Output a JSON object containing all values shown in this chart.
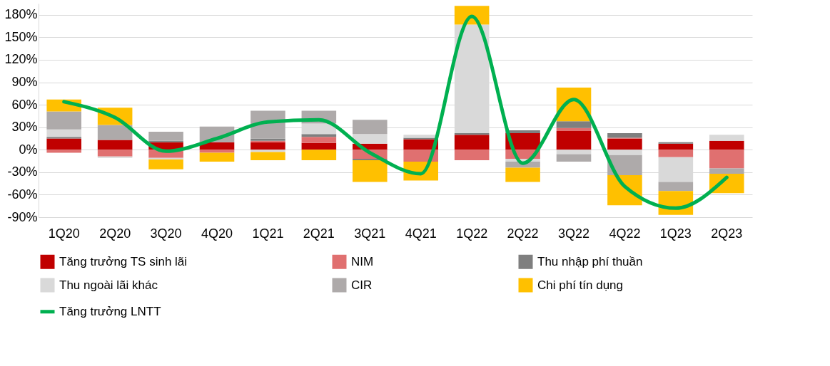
{
  "chart_data": {
    "type": "bar",
    "stacked": true,
    "categories": [
      "1Q20",
      "2Q20",
      "3Q20",
      "4Q20",
      "1Q21",
      "2Q21",
      "3Q21",
      "4Q21",
      "1Q22",
      "2Q22",
      "3Q22",
      "4Q22",
      "1Q23",
      "2Q23"
    ],
    "series": [
      {
        "name": "Tăng trưởng TS sinh lãi",
        "color": "#c00000",
        "values": [
          15,
          13,
          10,
          10,
          10,
          9,
          8,
          14,
          20,
          22,
          25,
          15,
          8,
          12
        ]
      },
      {
        "name": "NIM",
        "color": "#e07070",
        "values": [
          -4,
          -9,
          -11,
          -4,
          2,
          8,
          -12,
          -16,
          -14,
          -12,
          4,
          1,
          -10,
          -25
        ]
      },
      {
        "name": "Thu nhập phí thuần",
        "color": "#7f7f7f",
        "values": [
          2,
          null,
          2,
          null,
          3,
          4,
          -2,
          2,
          2,
          4,
          9,
          6,
          2,
          null
        ]
      },
      {
        "name": "Thu ngoài lãi khác",
        "color": "#d9d9d9",
        "values": [
          10,
          -2,
          -2,
          null,
          -3,
          14,
          13,
          4,
          145,
          -4,
          -6,
          -7,
          -33,
          8
        ]
      },
      {
        "name": "CIR",
        "color": "#aeaaaa",
        "values": [
          24,
          20,
          12,
          21,
          37,
          17,
          19,
          null,
          null,
          -8,
          -10,
          -27,
          -12,
          -7
        ]
      },
      {
        "name": "Chi phí tín dụng",
        "color": "#ffc000",
        "values": [
          16,
          23,
          -13,
          -12,
          -11,
          -14,
          -29,
          -25,
          25,
          -19,
          45,
          -40,
          -32,
          -26
        ]
      },
      {
        "name": "Tăng trưởng LNTT",
        "type": "line",
        "color": "#00b050",
        "values": [
          64,
          43,
          -2,
          15,
          37,
          40,
          -4,
          -32,
          178,
          -18,
          67,
          -49,
          -78,
          -37
        ]
      }
    ],
    "ylim": [
      -90,
      195
    ],
    "yticks": [
      {
        "value": -90,
        "label": "-90%"
      },
      {
        "value": -60,
        "label": "-60%"
      },
      {
        "value": -30,
        "label": "-30%"
      },
      {
        "value": 0,
        "label": "0%"
      },
      {
        "value": 30,
        "label": "30%"
      },
      {
        "value": 60,
        "label": "60%"
      },
      {
        "value": 90,
        "label": "90%"
      },
      {
        "value": 120,
        "label": "120%"
      },
      {
        "value": 150,
        "label": "150%"
      },
      {
        "value": 180,
        "label": "180%"
      }
    ],
    "grid": "y",
    "legend": "bottom"
  }
}
